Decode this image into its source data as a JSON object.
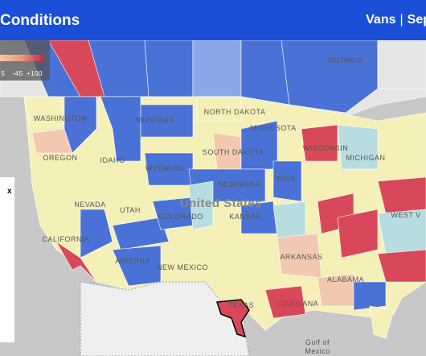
{
  "header": {
    "title": "Conditions",
    "equipment": "Vans",
    "separator": "|",
    "date": "Sep"
  },
  "legend": {
    "labels": [
      "5",
      "-45",
      "+100"
    ]
  },
  "panel": {
    "close": "x"
  },
  "map": {
    "labels": [
      "ONTARIO",
      "WASHINGTON",
      "MONTANA",
      "NORTH DAKOTA",
      "MINNESOTA",
      "OREGON",
      "IDAHO",
      "SOUTH DAKOTA",
      "WYOMING",
      "WISCONSIN",
      "MICHIGAN",
      "NEBRASKA",
      "IOWA",
      "NEVADA",
      "UTAH",
      "COLORADO",
      "United States",
      "KANSAS",
      "CALIFORNIA",
      "ARIZONA",
      "NEW MEXICO",
      "TEXAS",
      "ARKANSAS",
      "LOUISIANA",
      "ALABAMA",
      "WEST V",
      "Gulf of",
      "Mexico"
    ]
  }
}
